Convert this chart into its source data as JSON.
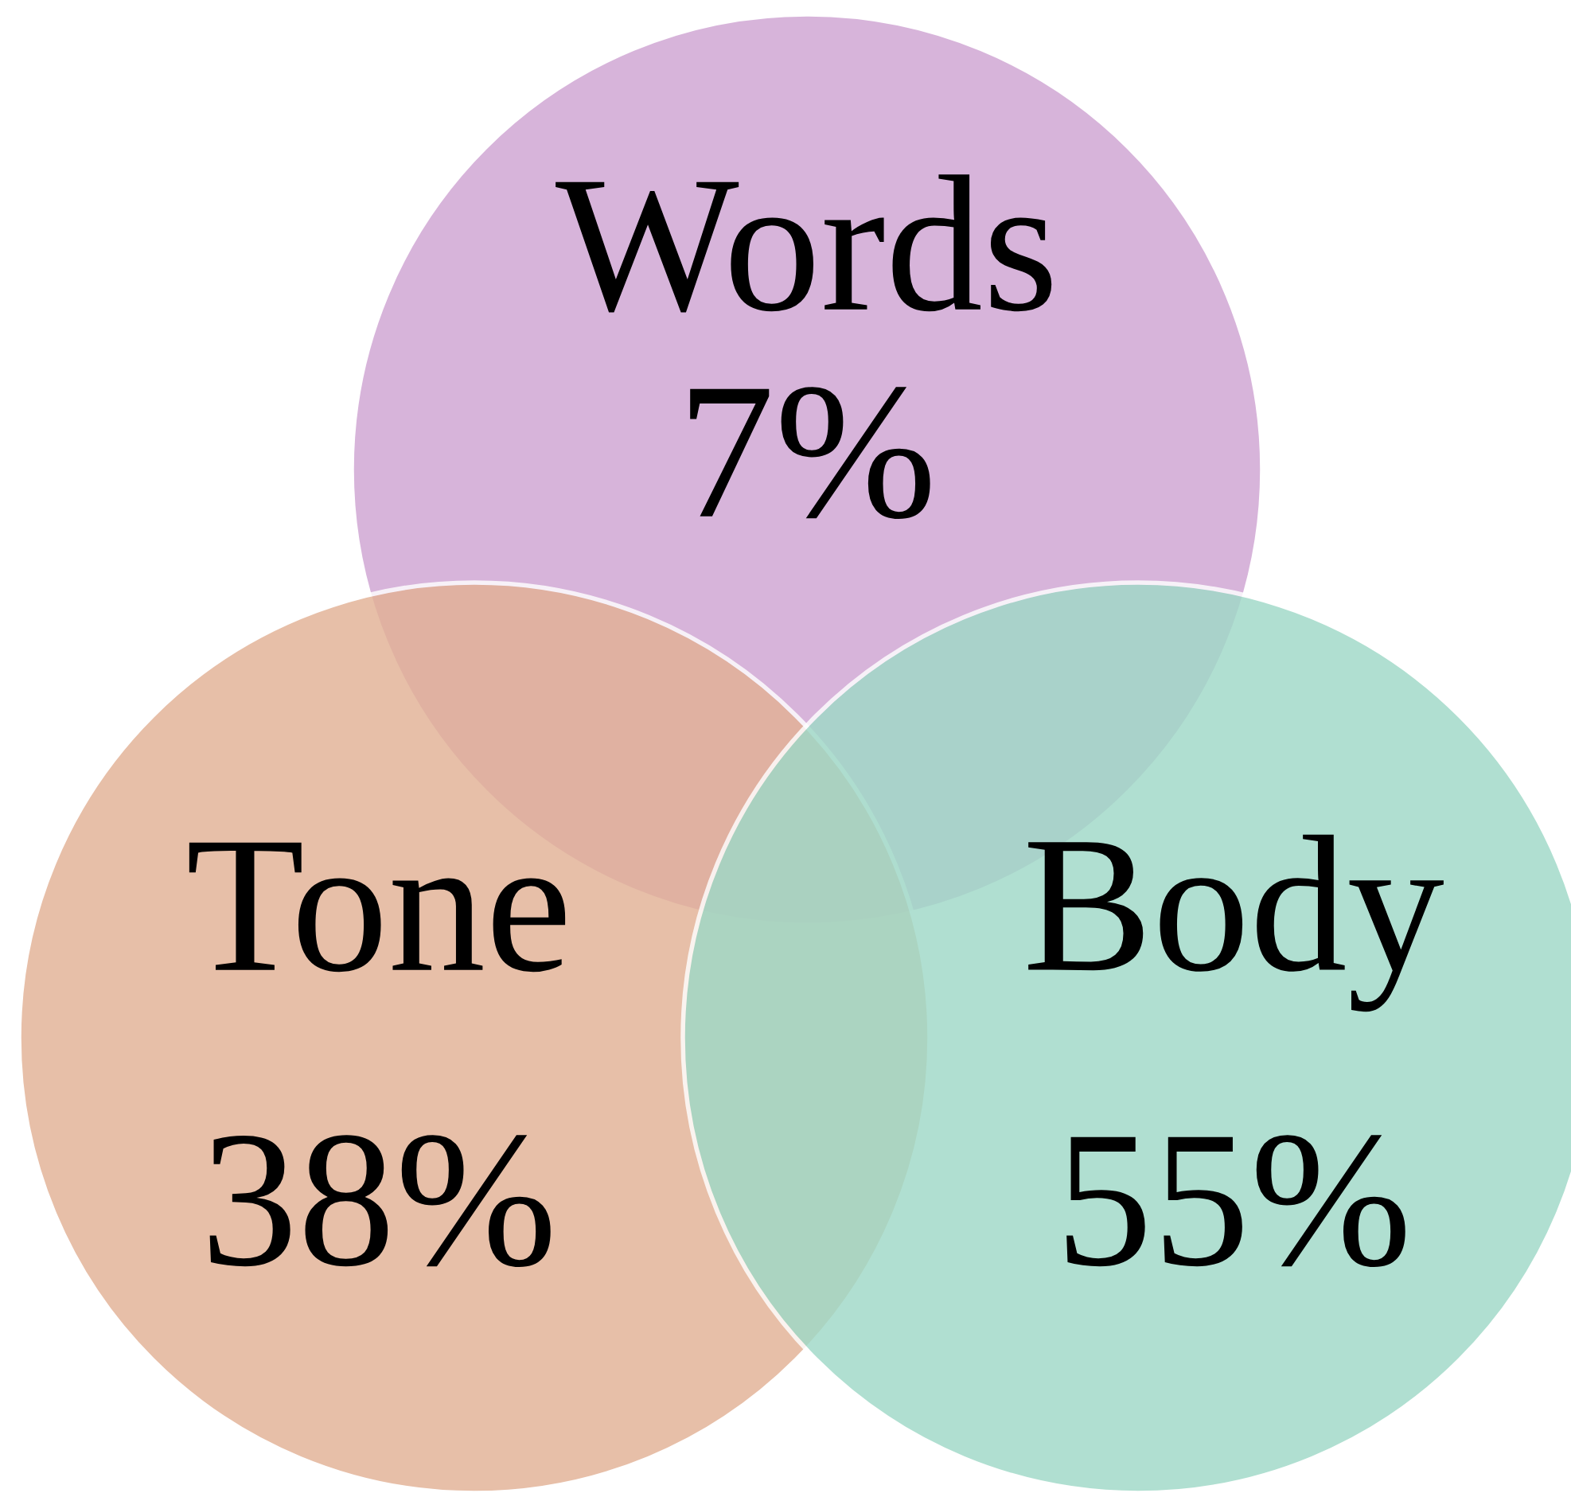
{
  "chart_data": {
    "type": "other",
    "categories": [
      "Words",
      "Tone",
      "Body"
    ],
    "values": [
      7,
      38,
      55
    ],
    "value_labels": [
      "7%",
      "38%",
      "55%"
    ],
    "colors": [
      "#cfa4d3",
      "#e2b195",
      "#9fd9c7"
    ]
  }
}
